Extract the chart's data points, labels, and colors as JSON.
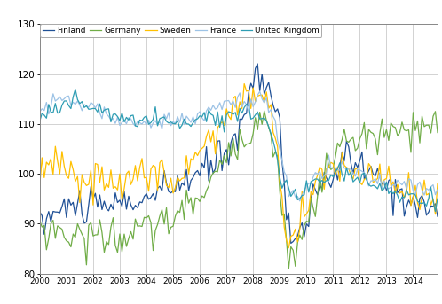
{
  "ylim": [
    80,
    130
  ],
  "xlim": [
    2000.0,
    2014.917
  ],
  "yticks": [
    80,
    90,
    100,
    110,
    120,
    130
  ],
  "xtick_years": [
    2000,
    2001,
    2002,
    2003,
    2004,
    2005,
    2006,
    2007,
    2008,
    2009,
    2010,
    2011,
    2012,
    2013,
    2014
  ],
  "colors": {
    "Finland": "#1f5096",
    "Germany": "#70ad47",
    "Sweden": "#ffc000",
    "France": "#9dc3e6",
    "United_Kingdom": "#2e9db3"
  },
  "background_color": "#ffffff",
  "grid_color": "#c0c0c0",
  "linewidth": 0.9
}
